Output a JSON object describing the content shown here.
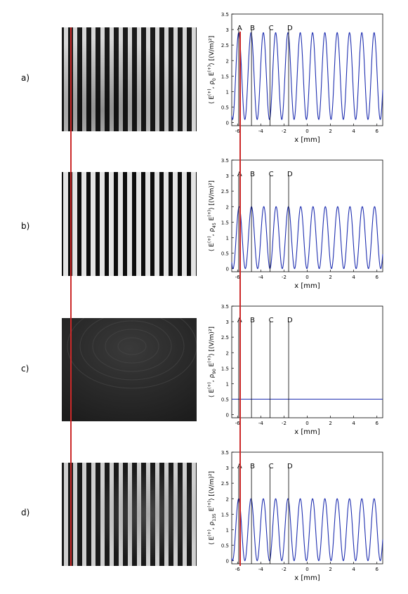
{
  "panels": [
    {
      "label": "a)"
    },
    {
      "label": "b)"
    },
    {
      "label": "c)"
    },
    {
      "label": "d)"
    }
  ],
  "colors": {
    "curve": "#1f2fb0",
    "marker_line": "#cc2a2a",
    "plot_line": "#000000"
  },
  "chart_data": [
    {
      "type": "line",
      "xlabel": "x [mm]",
      "ylabel_main": "⟨ E",
      "ylabel_sup": "(+)",
      "ylabel_mid": ", ρ",
      "ylabel_sub": "0",
      "ylabel_tail": " E",
      "ylabel_sup2": "(+)",
      "ylabel_end": "⟩ [(V/m)²]",
      "xlim": [
        -6.5,
        6.5
      ],
      "ylim": [
        -0.1,
        3.5
      ],
      "xticks": [
        "-6",
        "-4",
        "-2",
        "0",
        "2",
        "4",
        "6"
      ],
      "yticks": [
        "0",
        "0.5",
        "1",
        "1.5",
        "2",
        "2.5",
        "3",
        "3.5"
      ],
      "markers": [
        {
          "label": "A",
          "x": -5.9
        },
        {
          "label": "B",
          "x": -4.8
        },
        {
          "label": "C",
          "x": -3.2
        },
        {
          "label": "D",
          "x": -1.6
        }
      ],
      "series": [
        {
          "kind": "cosine",
          "mean": 1.5,
          "amplitude": 1.4,
          "period_mm": 1.06,
          "peak_at_mm": -5.9
        }
      ]
    },
    {
      "type": "line",
      "xlabel": "x [mm]",
      "ylabel_main": "⟨ E",
      "ylabel_sup": "(+)",
      "ylabel_mid": ", ρ",
      "ylabel_sub": "45",
      "ylabel_tail": " E",
      "ylabel_sup2": "(+)",
      "ylabel_end": "⟩ [(V/m)²]",
      "xlim": [
        -6.5,
        6.5
      ],
      "ylim": [
        -0.1,
        3.5
      ],
      "xticks": [
        "-6",
        "-4",
        "-2",
        "0",
        "2",
        "4",
        "6"
      ],
      "yticks": [
        "0",
        "0.5",
        "1",
        "1.5",
        "2",
        "2.5",
        "3",
        "3.5"
      ],
      "markers": [
        {
          "label": "A",
          "x": -5.9
        },
        {
          "label": "B",
          "x": -4.8
        },
        {
          "label": "C",
          "x": -3.2
        },
        {
          "label": "D",
          "x": -1.6
        }
      ],
      "series": [
        {
          "kind": "cosine",
          "mean": 1.0,
          "amplitude": 1.0,
          "period_mm": 1.06,
          "peak_at_mm": -4.8
        }
      ]
    },
    {
      "type": "line",
      "xlabel": "x [mm]",
      "ylabel_main": "⟨ E",
      "ylabel_sup": "(+)",
      "ylabel_mid": ", ρ",
      "ylabel_sub": "90",
      "ylabel_tail": " E",
      "ylabel_sup2": "(+)",
      "ylabel_end": "⟩ [(V/m)²]",
      "xlim": [
        -6.5,
        6.5
      ],
      "ylim": [
        -0.1,
        3.5
      ],
      "xticks": [
        "-6",
        "-4",
        "-2",
        "0",
        "2",
        "4",
        "6"
      ],
      "yticks": [
        "0",
        "0.5",
        "1",
        "1.5",
        "2",
        "2.5",
        "3",
        "3.5"
      ],
      "markers": [
        {
          "label": "A",
          "x": -5.9
        },
        {
          "label": "B",
          "x": -4.8
        },
        {
          "label": "C",
          "x": -3.2
        },
        {
          "label": "D",
          "x": -1.6
        }
      ],
      "series": [
        {
          "kind": "constant",
          "mean": 0.5,
          "amplitude": 0,
          "period_mm": 1.06,
          "peak_at_mm": 0
        }
      ]
    },
    {
      "type": "line",
      "xlabel": "x [mm]",
      "ylabel_main": "⟨ E",
      "ylabel_sup": "(+)",
      "ylabel_mid": ", ρ",
      "ylabel_sub": "135",
      "ylabel_tail": " E",
      "ylabel_sup2": "(+)",
      "ylabel_end": "⟩ [(V/m)²]",
      "xlim": [
        -6.5,
        6.5
      ],
      "ylim": [
        -0.1,
        3.5
      ],
      "xticks": [
        "-6",
        "-4",
        "-2",
        "0",
        "2",
        "4",
        "6"
      ],
      "yticks": [
        "0",
        "0.5",
        "1",
        "1.5",
        "2",
        "2.5",
        "3",
        "3.5"
      ],
      "markers": [
        {
          "label": "A",
          "x": -5.9
        },
        {
          "label": "B",
          "x": -4.8
        },
        {
          "label": "C",
          "x": -3.2
        },
        {
          "label": "D",
          "x": -1.6
        }
      ],
      "series": [
        {
          "kind": "cosine",
          "mean": 1.0,
          "amplitude": 1.0,
          "period_mm": 1.06,
          "peak_at_mm": -5.9
        }
      ]
    }
  ]
}
